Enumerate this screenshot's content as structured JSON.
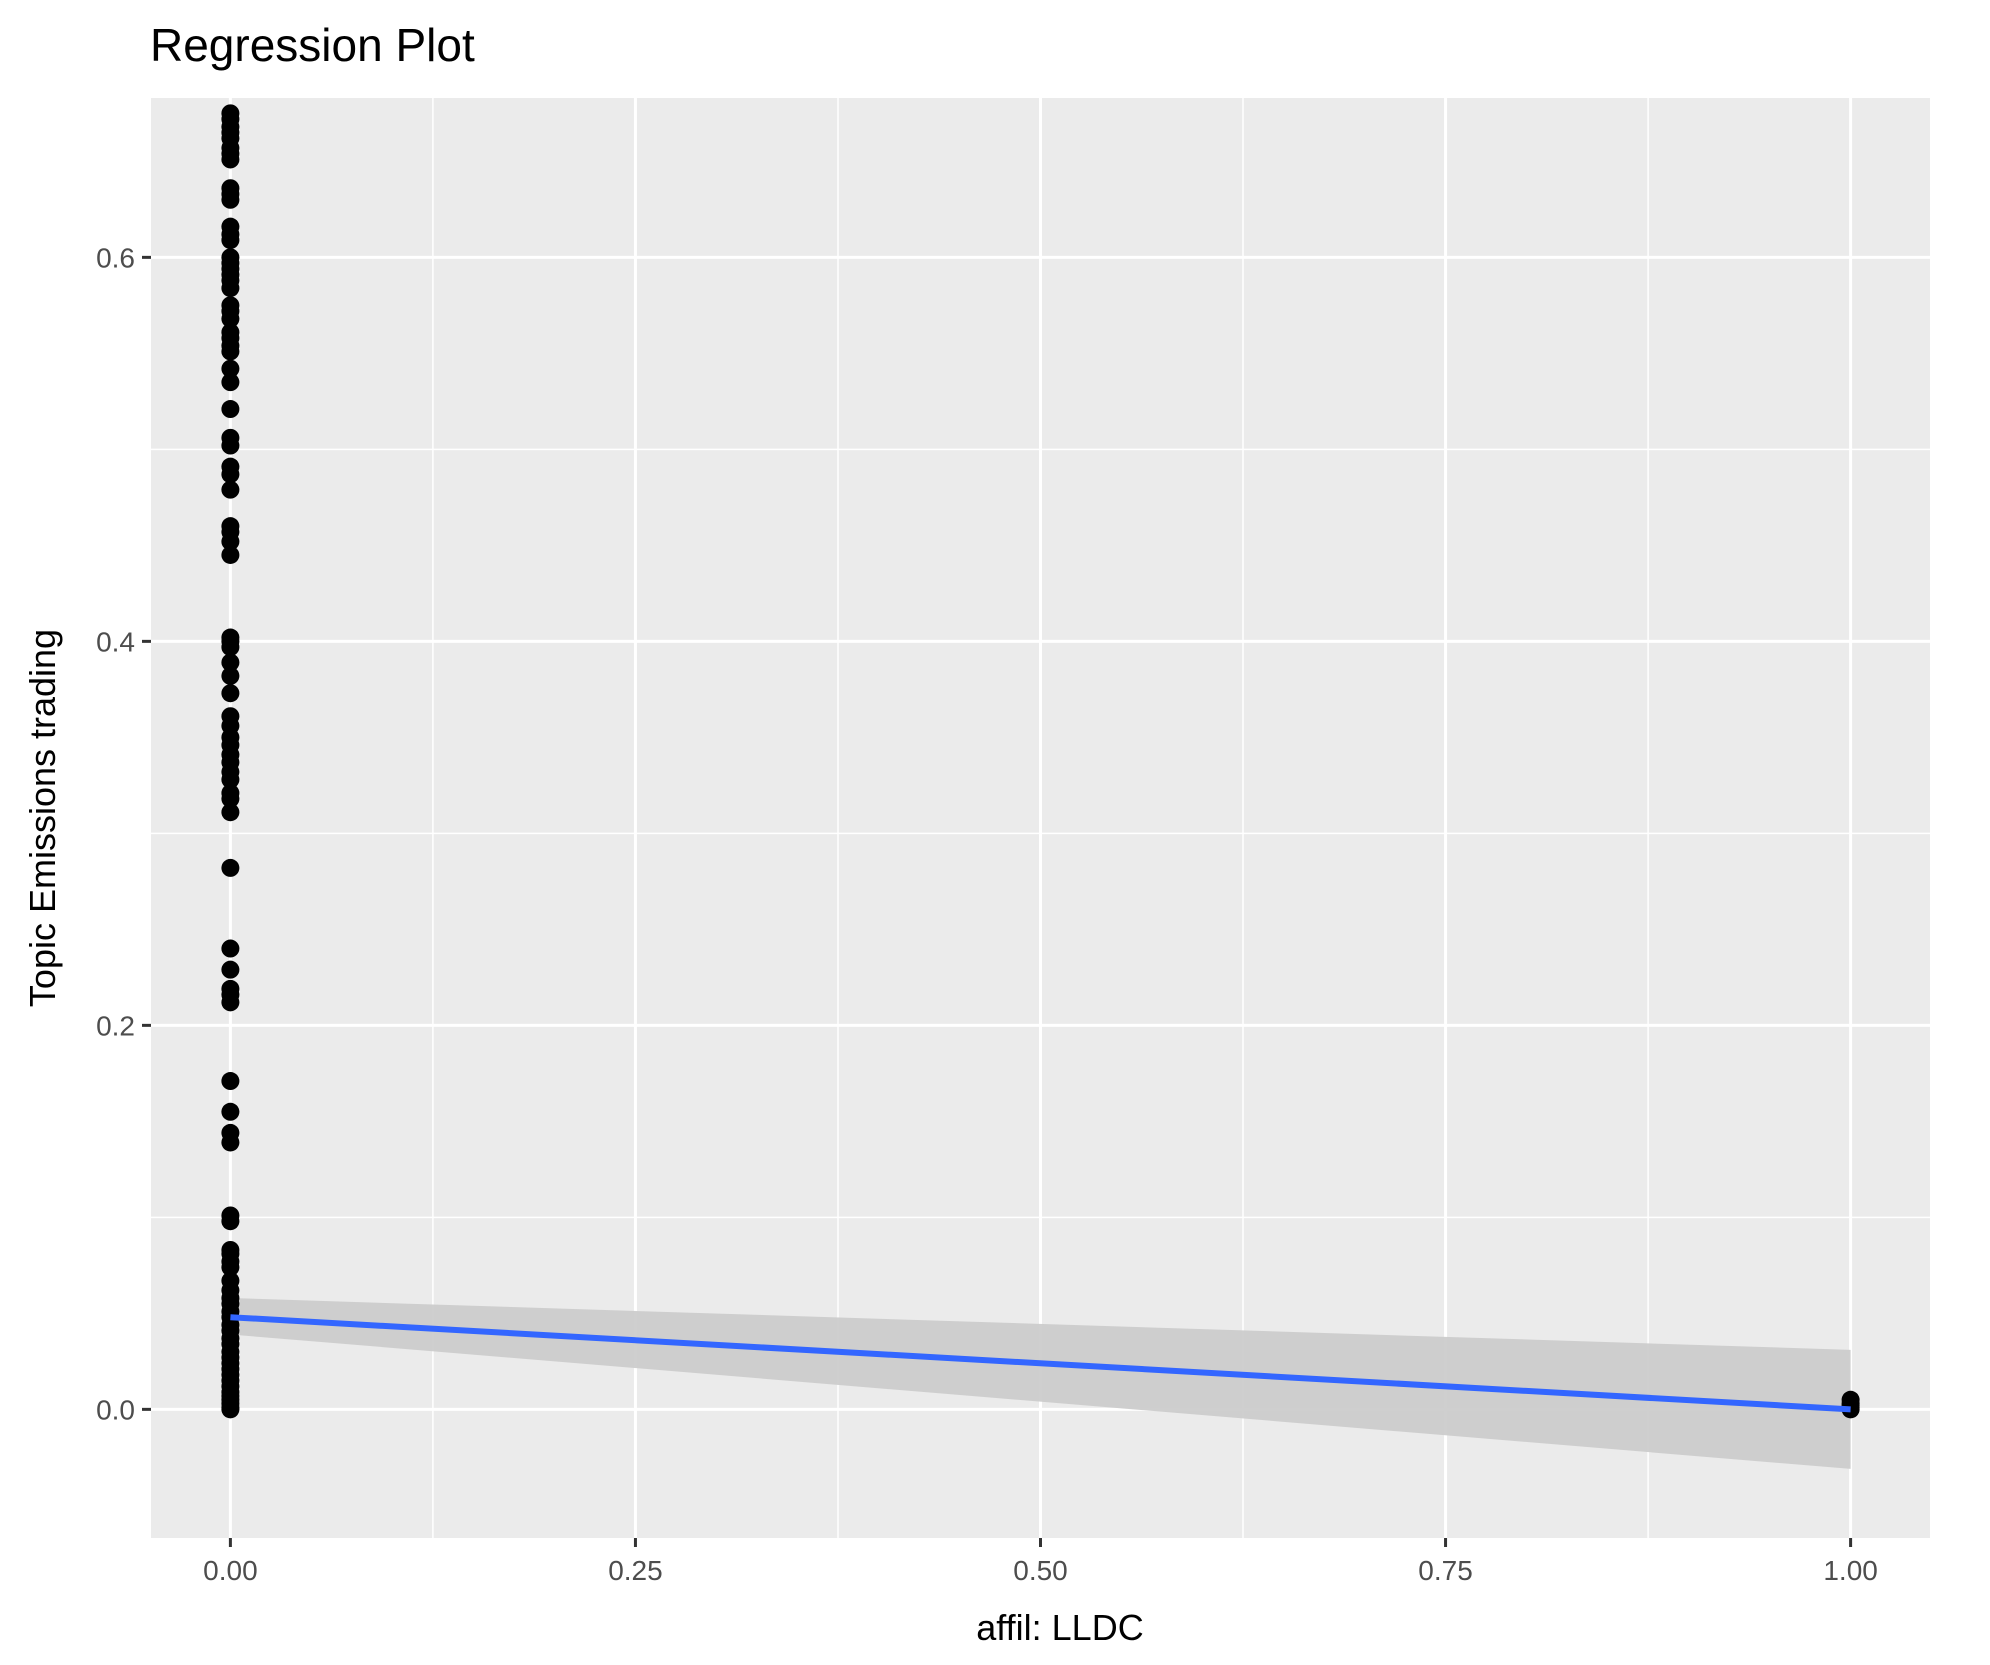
{
  "chart_data": {
    "type": "scatter",
    "title": "Regression Plot",
    "xlabel": "affil: LLDC",
    "ylabel": "Topic Emissions trading",
    "xlim": [
      -0.049,
      1.049
    ],
    "ylim": [
      -0.067,
      0.683
    ],
    "x_ticks": [
      0.0,
      0.25,
      0.5,
      0.75,
      1.0
    ],
    "x_tick_labels": [
      "0.00",
      "0.25",
      "0.50",
      "0.75",
      "1.00"
    ],
    "y_ticks": [
      0.0,
      0.2,
      0.4,
      0.6
    ],
    "y_tick_labels": [
      "0.0",
      "0.2",
      "0.4",
      "0.6"
    ],
    "grid": true,
    "legend": "none",
    "colors": {
      "panel": "#ebebeb",
      "grid": "#ffffff",
      "points": "#000000",
      "regression_line": "#3366ff",
      "confidence_band": "#cccccc"
    },
    "points_x0_y": [
      0.675,
      0.672,
      0.668,
      0.665,
      0.662,
      0.657,
      0.654,
      0.651,
      0.636,
      0.633,
      0.63,
      0.616,
      0.612,
      0.609,
      0.6,
      0.597,
      0.594,
      0.591,
      0.588,
      0.584,
      0.575,
      0.572,
      0.568,
      0.561,
      0.558,
      0.554,
      0.551,
      0.542,
      0.535,
      0.521,
      0.506,
      0.502,
      0.491,
      0.487,
      0.479,
      0.46,
      0.457,
      0.452,
      0.445,
      0.402,
      0.4,
      0.397,
      0.389,
      0.382,
      0.373,
      0.361,
      0.356,
      0.35,
      0.346,
      0.341,
      0.337,
      0.332,
      0.328,
      0.321,
      0.318,
      0.311,
      0.282,
      0.24,
      0.229,
      0.219,
      0.216,
      0.212,
      0.171,
      0.155,
      0.144,
      0.139,
      0.101,
      0.098,
      0.083,
      0.081,
      0.077,
      0.074,
      0.067,
      0.062,
      0.058,
      0.055,
      0.051,
      0.048,
      0.044,
      0.041,
      0.037,
      0.034,
      0.03,
      0.027,
      0.024,
      0.021,
      0.018,
      0.015,
      0.012,
      0.009,
      0.007,
      0.005,
      0.003,
      0.001,
      0.0
    ],
    "points_x1_y": [
      0.005,
      0.003,
      0.002,
      0.001,
      0.0
    ],
    "regression": {
      "x": [
        0.0,
        1.0
      ],
      "y": [
        0.048,
        0.0
      ],
      "ci_lower": [
        0.039,
        -0.031
      ],
      "ci_upper": [
        0.058,
        0.031
      ]
    }
  }
}
